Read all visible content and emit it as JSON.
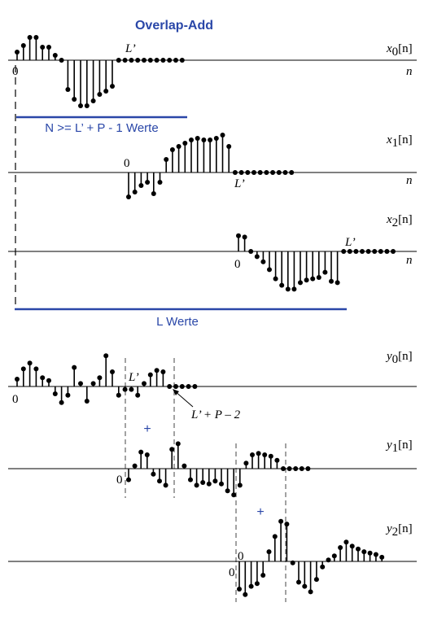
{
  "title": "Overlap-Add",
  "colors": {
    "accent": "#2a47a8",
    "ink": "#000000"
  },
  "annotations": {
    "n_condition": "N >= L’ + P - 1 Werte",
    "l_values": "L Werte",
    "plus": "+",
    "lp2_label": "L’ + P – 2"
  },
  "labels": {
    "zero": "0",
    "n": "n",
    "L_prime": "L’"
  },
  "signals": {
    "x0": {
      "name": "x",
      "sub": "0",
      "arg": "[n]",
      "values": [
        0.5,
        0.9,
        1.4,
        1.4,
        0.8,
        0.8,
        0.3,
        0,
        -1.8,
        -2.4,
        -2.8,
        -2.8,
        -2.5,
        -2.1,
        -1.9,
        -1.6,
        0,
        0,
        0,
        0,
        0,
        0,
        0,
        0,
        0,
        0,
        0
      ]
    },
    "x1": {
      "name": "x",
      "sub": "1",
      "arg": "[n]",
      "values": [
        -1.5,
        -1.2,
        -0.8,
        -0.6,
        -1.3,
        -0.6,
        0.8,
        1.4,
        1.6,
        1.8,
        2.0,
        2.1,
        2.0,
        2.0,
        2.1,
        2.3,
        1.6,
        0,
        0,
        0,
        0,
        0,
        0,
        0,
        0,
        0,
        0
      ]
    },
    "x2": {
      "name": "x",
      "sub": "2",
      "arg": "[n]",
      "values": [
        1.2,
        1.1,
        0,
        -0.4,
        -0.8,
        -1.4,
        -2.1,
        -2.6,
        -2.9,
        -2.9,
        -2.4,
        -2.2,
        -2.1,
        -2.0,
        -1.6,
        -2.3,
        -2.4,
        0,
        0,
        0,
        0,
        0,
        0,
        0,
        0,
        0
      ]
    },
    "y0": {
      "name": "y",
      "sub": "0",
      "arg": "[n]",
      "values": [
        0.5,
        1.2,
        1.6,
        1.2,
        0.6,
        0.4,
        -0.5,
        -1.1,
        -0.6,
        1.3,
        0.2,
        -1.0,
        0.2,
        0.6,
        2.1,
        1.0,
        -0.6,
        -0.2,
        -0.2,
        -0.6,
        0.2,
        0.8,
        1.1,
        1.0,
        0,
        0,
        0,
        0,
        0
      ]
    },
    "y1": {
      "name": "y",
      "sub": "1",
      "arg": "[n]",
      "values": [
        -0.8,
        0.2,
        1.2,
        1.0,
        -0.4,
        -0.9,
        -1.2,
        1.4,
        1.8,
        0.2,
        -0.8,
        -1.2,
        -1.0,
        -1.1,
        -0.9,
        -1.1,
        -1.6,
        -1.9,
        -1.2,
        0.4,
        1.0,
        1.1,
        1.0,
        0.9,
        0.6,
        0,
        0,
        0,
        0,
        0
      ]
    },
    "y2": {
      "name": "y",
      "sub": "2",
      "arg": "[n]",
      "values": [
        -2.0,
        -2.4,
        -1.8,
        -1.6,
        -1.0,
        0.7,
        1.8,
        2.9,
        2.7,
        -0.1,
        -1.5,
        -1.8,
        -2.2,
        -1.3,
        -0.4,
        0.1,
        0.4,
        1.0,
        1.4,
        1.1,
        0.9,
        0.7,
        0.6,
        0.5,
        0.3
      ]
    }
  }
}
